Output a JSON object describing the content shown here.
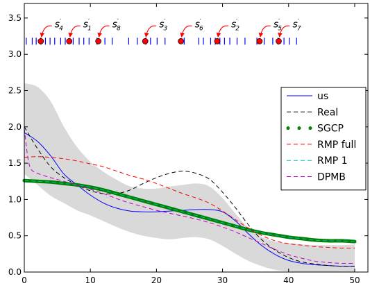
{
  "chart_data": {
    "type": "line",
    "xlim": [
      0,
      52
    ],
    "ylim": [
      0,
      3.7
    ],
    "xticks": [
      0,
      10,
      20,
      30,
      40,
      50
    ],
    "yticks": [
      0.0,
      0.5,
      1.0,
      1.5,
      2.0,
      2.5,
      3.0,
      3.5
    ],
    "grid": false,
    "legend_position": "right",
    "band": {
      "color": "#d9d9d9",
      "x": [
        0,
        2,
        4,
        6,
        8,
        10,
        12,
        14,
        16,
        18,
        20,
        22,
        24,
        26,
        28,
        30,
        32,
        34,
        36,
        38,
        40,
        42,
        44,
        46,
        48,
        50
      ],
      "upper": [
        2.6,
        2.55,
        2.35,
        2.0,
        1.72,
        1.52,
        1.38,
        1.27,
        1.18,
        1.15,
        1.15,
        1.18,
        1.2,
        1.22,
        1.18,
        1.02,
        0.8,
        0.6,
        0.48,
        0.42,
        0.4,
        0.38,
        0.37,
        0.37,
        0.37,
        0.38
      ],
      "lower": [
        1.35,
        1.2,
        1.05,
        0.95,
        0.85,
        0.78,
        0.7,
        0.62,
        0.55,
        0.5,
        0.47,
        0.45,
        0.47,
        0.48,
        0.45,
        0.36,
        0.25,
        0.15,
        0.08,
        0.03,
        0.01,
        0.0,
        0.0,
        0.0,
        0.0,
        0.0
      ]
    },
    "series": [
      {
        "name": "us",
        "color": "#0000ff",
        "style": "solid",
        "x": [
          0,
          2,
          4,
          6,
          8,
          10,
          12,
          14,
          16,
          18,
          20,
          22,
          24,
          26,
          28,
          30,
          32,
          34,
          36,
          38,
          40,
          42,
          44,
          46,
          48,
          50
        ],
        "y": [
          1.92,
          1.8,
          1.6,
          1.35,
          1.2,
          1.06,
          0.95,
          0.88,
          0.84,
          0.83,
          0.83,
          0.84,
          0.85,
          0.86,
          0.86,
          0.83,
          0.7,
          0.52,
          0.36,
          0.24,
          0.16,
          0.12,
          0.1,
          0.09,
          0.08,
          0.08
        ]
      },
      {
        "name": "Real",
        "color": "#000000",
        "style": "dashed",
        "x": [
          0,
          2,
          4,
          6,
          8,
          10,
          12,
          14,
          16,
          18,
          20,
          22,
          24,
          26,
          28,
          30,
          32,
          34,
          36,
          38,
          40,
          42,
          44,
          46,
          48,
          50
        ],
        "y": [
          2.0,
          1.7,
          1.45,
          1.3,
          1.2,
          1.12,
          1.08,
          1.08,
          1.13,
          1.22,
          1.3,
          1.36,
          1.39,
          1.36,
          1.28,
          1.1,
          0.88,
          0.64,
          0.44,
          0.3,
          0.2,
          0.14,
          0.11,
          0.09,
          0.08,
          0.08
        ]
      },
      {
        "name": "SGCP",
        "color": "#008000",
        "style": "thick-dotted",
        "x": [
          0,
          2,
          4,
          6,
          8,
          10,
          12,
          14,
          16,
          18,
          20,
          22,
          24,
          26,
          28,
          30,
          32,
          34,
          36,
          38,
          40,
          42,
          44,
          46,
          48,
          50
        ],
        "y": [
          1.26,
          1.25,
          1.24,
          1.22,
          1.2,
          1.17,
          1.13,
          1.08,
          1.03,
          0.98,
          0.93,
          0.88,
          0.83,
          0.78,
          0.73,
          0.68,
          0.63,
          0.58,
          0.54,
          0.51,
          0.48,
          0.46,
          0.44,
          0.43,
          0.43,
          0.42
        ]
      },
      {
        "name": "RMP full",
        "color": "#ff0000",
        "style": "dashed",
        "x": [
          0,
          2,
          4,
          6,
          8,
          10,
          12,
          14,
          16,
          18,
          20,
          22,
          24,
          26,
          28,
          30,
          32,
          34,
          36,
          38,
          40,
          42,
          44,
          46,
          48,
          50
        ],
        "y": [
          1.58,
          1.59,
          1.58,
          1.56,
          1.53,
          1.49,
          1.45,
          1.39,
          1.33,
          1.28,
          1.22,
          1.15,
          1.08,
          1.02,
          0.95,
          0.84,
          0.72,
          0.6,
          0.5,
          0.43,
          0.39,
          0.37,
          0.35,
          0.34,
          0.33,
          0.33
        ]
      },
      {
        "name": "RMP 1",
        "color": "#00bfbf",
        "style": "dashed",
        "x": [
          0,
          2,
          4,
          6,
          8,
          10,
          12,
          14,
          16,
          18,
          20,
          22,
          24,
          26,
          28,
          30,
          32,
          34,
          36,
          38,
          40,
          42,
          44,
          46,
          48,
          50
        ],
        "y": [
          1.26,
          1.25,
          1.24,
          1.22,
          1.2,
          1.17,
          1.13,
          1.08,
          1.03,
          0.98,
          0.93,
          0.88,
          0.83,
          0.78,
          0.73,
          0.68,
          0.63,
          0.58,
          0.54,
          0.51,
          0.48,
          0.46,
          0.44,
          0.43,
          0.43,
          0.42
        ]
      },
      {
        "name": "DPMB",
        "color": "#bf00bf",
        "style": "dashed",
        "x": [
          0,
          0.5,
          1,
          2,
          4,
          6,
          8,
          10,
          12,
          14,
          16,
          18,
          20,
          22,
          24,
          26,
          28,
          30,
          32,
          34,
          36,
          38,
          40,
          42,
          44,
          46,
          48,
          50
        ],
        "y": [
          1.98,
          1.6,
          1.42,
          1.36,
          1.3,
          1.25,
          1.2,
          1.14,
          1.08,
          1.01,
          0.95,
          0.9,
          0.85,
          0.81,
          0.77,
          0.73,
          0.68,
          0.62,
          0.55,
          0.47,
          0.39,
          0.31,
          0.24,
          0.19,
          0.15,
          0.13,
          0.12,
          0.12
        ]
      }
    ],
    "events": {
      "y": 3.18,
      "color": "#0000ff",
      "x": [
        0.3,
        1.2,
        1.8,
        2.5,
        3.2,
        3.9,
        4.6,
        5.5,
        6.2,
        7.4,
        8.3,
        9.0,
        9.8,
        11.0,
        12.2,
        13.3,
        15.8,
        17.1,
        18.4,
        19.1,
        20.1,
        21.3,
        24.2,
        26.4,
        27.1,
        28.2,
        28.9,
        29.6,
        30.3,
        31.1,
        32.2,
        33.4,
        35.2,
        36.3,
        37.6,
        38.4,
        39.3,
        40.1,
        41.2
      ]
    },
    "marked_points": {
      "y": 3.18,
      "fill": "#ff0000",
      "arrow_color": "#ff0000",
      "points": [
        {
          "x": 2.5,
          "label": "s",
          "subscript": "4"
        },
        {
          "x": 6.8,
          "label": "s",
          "subscript": "1"
        },
        {
          "x": 11.2,
          "label": "s",
          "subscript": "8"
        },
        {
          "x": 18.3,
          "label": "s",
          "subscript": "3"
        },
        {
          "x": 23.7,
          "label": "s",
          "subscript": "6"
        },
        {
          "x": 29.2,
          "label": "s",
          "subscript": "2"
        },
        {
          "x": 35.6,
          "label": "s",
          "subscript": "5"
        },
        {
          "x": 38.5,
          "label": "s",
          "subscript": "7"
        }
      ]
    }
  }
}
